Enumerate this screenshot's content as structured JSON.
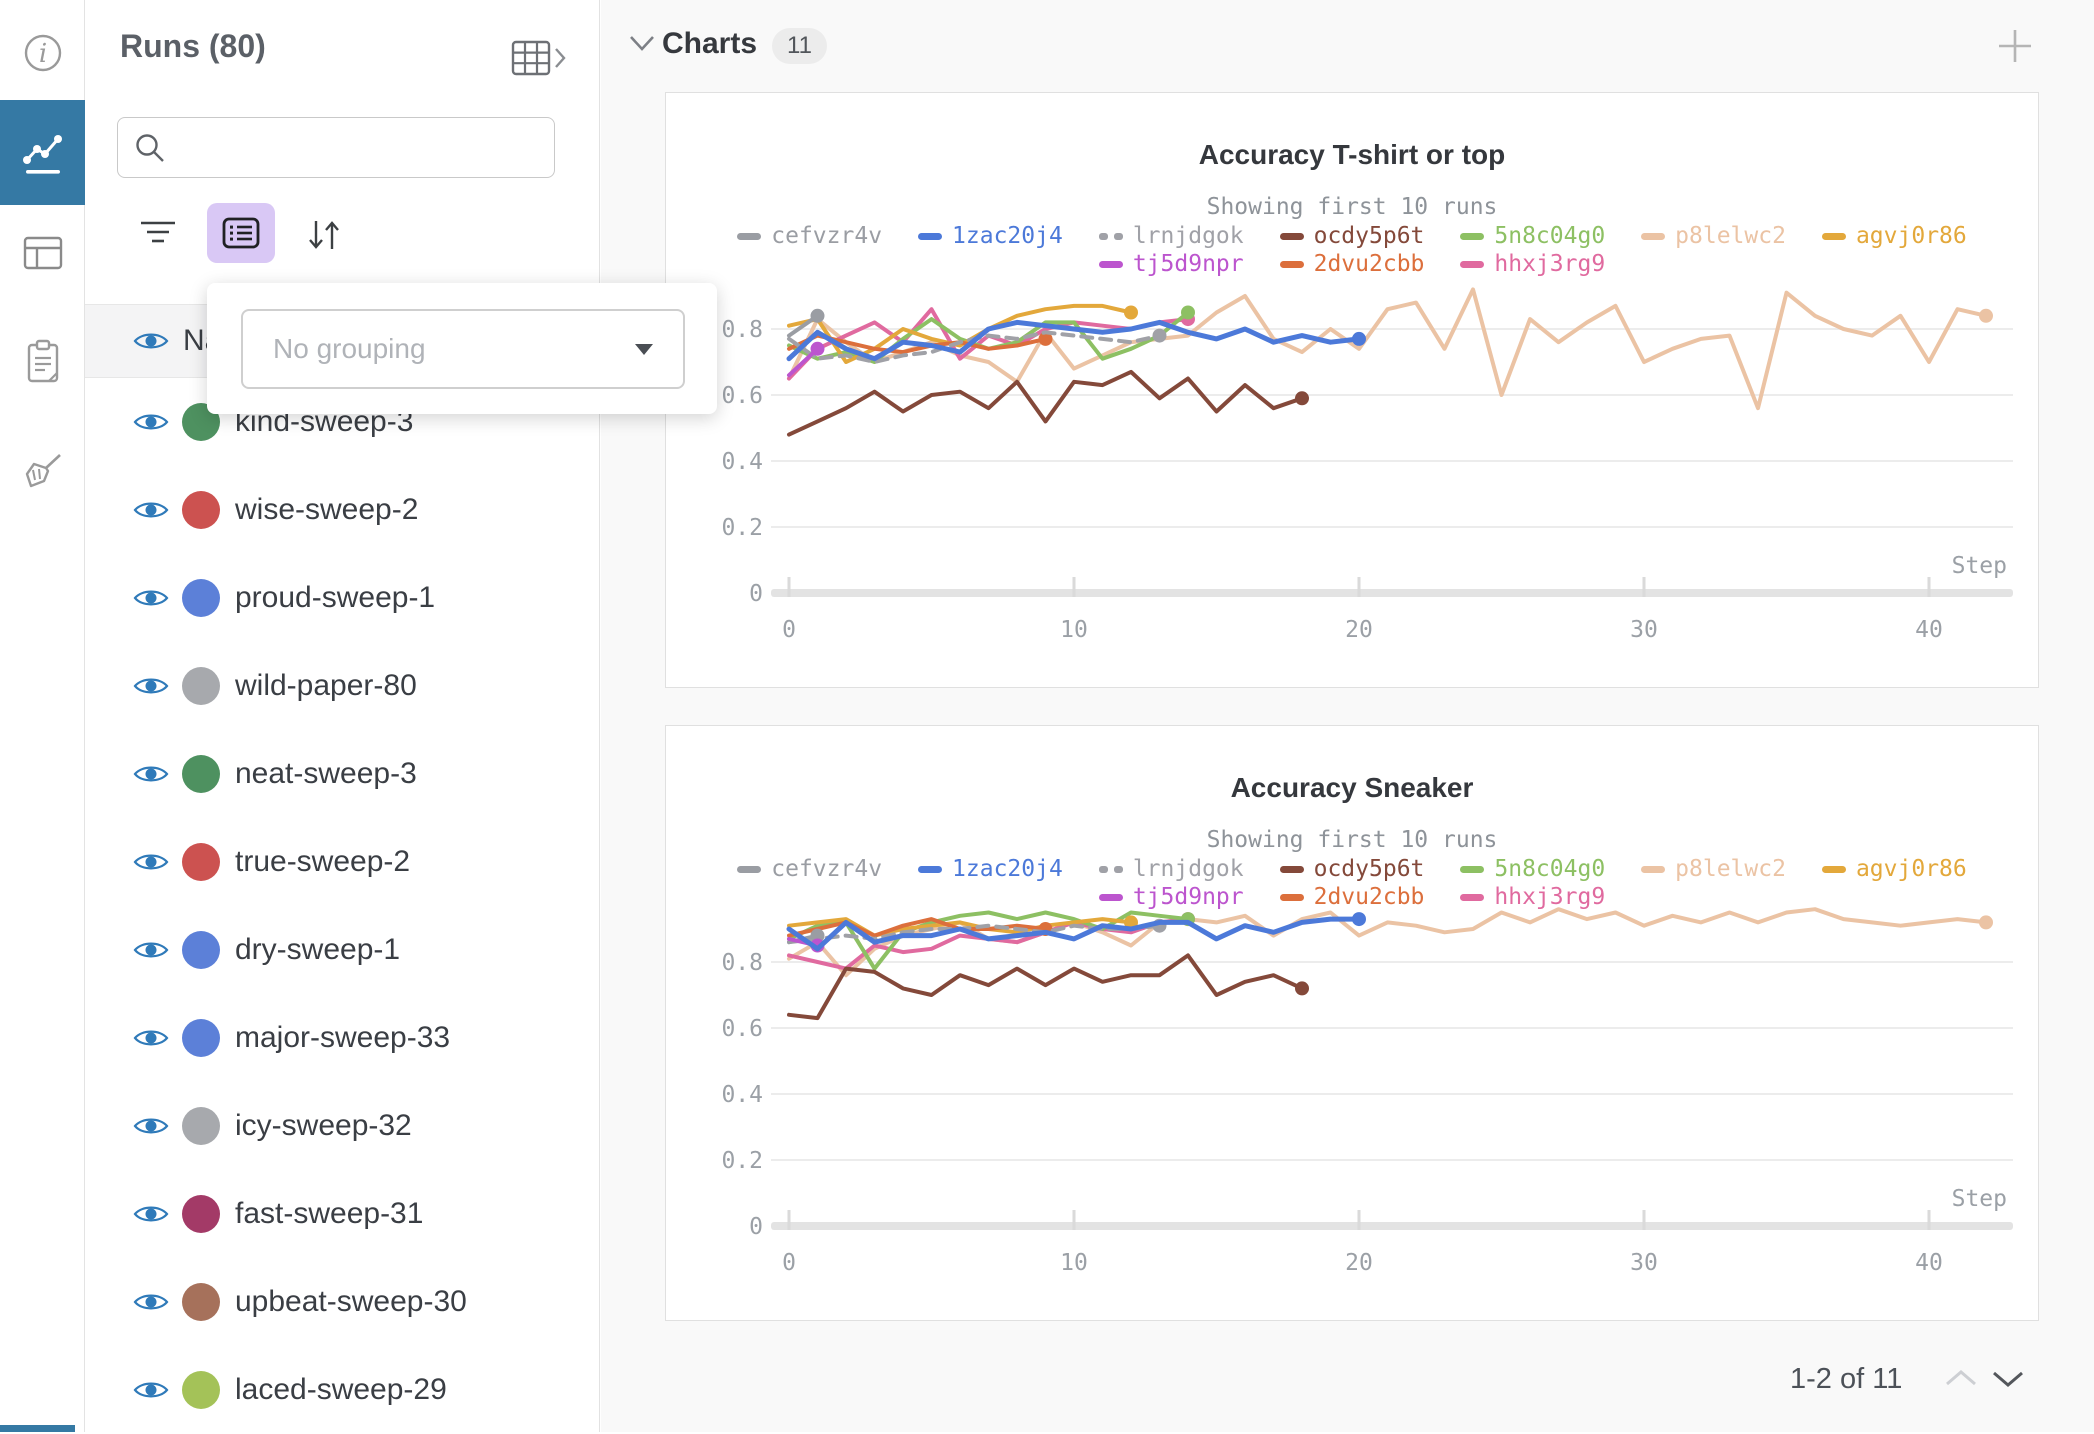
{
  "ui": {
    "rail": {
      "icons": [
        "info-icon",
        "line-chart-icon",
        "table-icon",
        "clipboard-icon",
        "broom-icon"
      ],
      "active_icon": "line-chart-icon",
      "active_color": "#3579A4"
    },
    "sidebar": {
      "title": "Runs (80)",
      "search_placeholder": "",
      "header_row": "Name",
      "grouping_placeholder": "No grouping"
    },
    "charts_header": {
      "label": "Charts",
      "badge": "11"
    },
    "pagination": {
      "label": "1-2 of 11"
    }
  },
  "runs": [
    {
      "name": "kind-sweep-3",
      "color": "#4E9160"
    },
    {
      "name": "wise-sweep-2",
      "color": "#CC5250"
    },
    {
      "name": "proud-sweep-1",
      "color": "#5C80D8"
    },
    {
      "name": "wild-paper-80",
      "color": "#A7A9AD"
    },
    {
      "name": "neat-sweep-3",
      "color": "#4E9160"
    },
    {
      "name": "true-sweep-2",
      "color": "#CC5250"
    },
    {
      "name": "dry-sweep-1",
      "color": "#5C80D8"
    },
    {
      "name": "major-sweep-33",
      "color": "#5C80D8"
    },
    {
      "name": "icy-sweep-32",
      "color": "#A7A9AD"
    },
    {
      "name": "fast-sweep-31",
      "color": "#A33A67"
    },
    {
      "name": "upbeat-sweep-30",
      "color": "#A6715B"
    },
    {
      "name": "laced-sweep-29",
      "color": "#A4C258"
    }
  ],
  "chart_data": [
    {
      "type": "line",
      "title": "Accuracy T-shirt or top",
      "subtitle": "Showing first 10 runs",
      "xlabel": "Step",
      "x_ticks": [
        0,
        10,
        20,
        30,
        40
      ],
      "y_ticks": [
        0,
        0.2,
        0.4,
        0.6,
        0.8
      ],
      "xlim": [
        0,
        42
      ],
      "ylim": [
        0,
        1
      ],
      "grid": true,
      "legend_position": "top",
      "legend_rows": [
        [
          "cefvzr4v",
          "1zac20j4",
          "lrnjdgok",
          "ocdy5p6t",
          "5n8c04g0",
          "p8lelwc2",
          "agvj0r86"
        ],
        [
          "tj5d9npr",
          "2dvu2cbb",
          "hhxj3rg9"
        ]
      ],
      "series": [
        {
          "name": "p8lelwc2",
          "color": "#EBC3A4",
          "values": [
            0.65,
            0.83,
            0.76,
            0.7,
            0.73,
            0.76,
            0.72,
            0.7,
            0.64,
            0.79,
            0.68,
            0.72,
            0.76,
            0.77,
            0.78,
            0.85,
            0.9,
            0.77,
            0.73,
            0.8,
            0.74,
            0.86,
            0.88,
            0.74,
            0.92,
            0.6,
            0.83,
            0.76,
            0.82,
            0.87,
            0.7,
            0.74,
            0.77,
            0.78,
            0.56,
            0.91,
            0.84,
            0.8,
            0.78,
            0.84,
            0.7,
            0.86,
            0.84
          ]
        },
        {
          "name": "hhxj3rg9",
          "color": "#E06A9F",
          "values": [
            0.65,
            0.74,
            0.78,
            0.82,
            0.76,
            0.86,
            0.71,
            0.78,
            0.75,
            0.8,
            0.82,
            0.81,
            0.8,
            0.82,
            0.83
          ]
        },
        {
          "name": "5n8c04g0",
          "color": "#8DC063",
          "values": [
            0.75,
            0.71,
            0.73,
            0.7,
            0.77,
            0.83,
            0.77,
            0.74,
            0.76,
            0.82,
            0.82,
            0.71,
            0.74,
            0.78,
            0.85
          ]
        },
        {
          "name": "agvj0r86",
          "color": "#E3A83B",
          "values": [
            0.81,
            0.83,
            0.7,
            0.74,
            0.8,
            0.77,
            0.75,
            0.8,
            0.84,
            0.86,
            0.87,
            0.87,
            0.85
          ]
        },
        {
          "name": "2dvu2cbb",
          "color": "#DC6F3C",
          "values": [
            0.74,
            0.78,
            0.76,
            0.74,
            0.73,
            0.75,
            0.76,
            0.74,
            0.75,
            0.77
          ]
        },
        {
          "name": "lrnjdgok",
          "color": "#A0A1A7",
          "dashed": true,
          "values": [
            0.77,
            0.71,
            0.72,
            0.7,
            0.72,
            0.73,
            0.76,
            0.78,
            0.77,
            0.79,
            0.78,
            0.77,
            0.76,
            0.78
          ]
        },
        {
          "name": "ocdy5p6t",
          "color": "#84493A",
          "values": [
            0.48,
            0.52,
            0.56,
            0.61,
            0.55,
            0.6,
            0.61,
            0.56,
            0.64,
            0.52,
            0.64,
            0.63,
            0.67,
            0.59,
            0.65,
            0.55,
            0.63,
            0.56,
            0.59
          ]
        },
        {
          "name": "cefvzr4v",
          "color": "#9A9DA3",
          "values": [
            0.78,
            0.84
          ]
        },
        {
          "name": "tj5d9npr",
          "color": "#BC55CE",
          "values": [
            0.66,
            0.74
          ]
        },
        {
          "name": "1zac20j4",
          "color": "#4C79D9",
          "line_width": 5,
          "values": [
            0.71,
            0.79,
            0.74,
            0.71,
            0.76,
            0.75,
            0.73,
            0.8,
            0.82,
            0.81,
            0.8,
            0.79,
            0.8,
            0.82,
            0.79,
            0.77,
            0.8,
            0.76,
            0.78,
            0.76,
            0.77
          ]
        }
      ]
    },
    {
      "type": "line",
      "title": "Accuracy Sneaker",
      "subtitle": "Showing first 10 runs",
      "xlabel": "Step",
      "x_ticks": [
        0,
        10,
        20,
        30,
        40
      ],
      "y_ticks": [
        0,
        0.2,
        0.4,
        0.6,
        0.8
      ],
      "xlim": [
        0,
        42
      ],
      "ylim": [
        0,
        1
      ],
      "grid": true,
      "legend_position": "top",
      "legend_rows": [
        [
          "cefvzr4v",
          "1zac20j4",
          "lrnjdgok",
          "ocdy5p6t",
          "5n8c04g0",
          "p8lelwc2",
          "agvj0r86"
        ],
        [
          "tj5d9npr",
          "2dvu2cbb",
          "hhxj3rg9"
        ]
      ],
      "series": [
        {
          "name": "p8lelwc2",
          "color": "#EBC3A4",
          "values": [
            0.81,
            0.86,
            0.76,
            0.84,
            0.88,
            0.9,
            0.92,
            0.87,
            0.86,
            0.89,
            0.92,
            0.89,
            0.85,
            0.92,
            0.93,
            0.92,
            0.94,
            0.88,
            0.93,
            0.95,
            0.88,
            0.92,
            0.91,
            0.89,
            0.9,
            0.95,
            0.92,
            0.96,
            0.93,
            0.95,
            0.91,
            0.94,
            0.92,
            0.95,
            0.92,
            0.95,
            0.96,
            0.93,
            0.92,
            0.91,
            0.92,
            0.93,
            0.92
          ]
        },
        {
          "name": "hhxj3rg9",
          "color": "#E06A9F",
          "values": [
            0.82,
            0.8,
            0.78,
            0.85,
            0.83,
            0.84,
            0.88,
            0.87,
            0.86,
            0.89,
            0.92,
            0.9,
            0.89,
            0.92,
            0.93
          ]
        },
        {
          "name": "5n8c04g0",
          "color": "#8DC063",
          "values": [
            0.87,
            0.91,
            0.92,
            0.78,
            0.89,
            0.92,
            0.94,
            0.95,
            0.93,
            0.95,
            0.93,
            0.9,
            0.95,
            0.94,
            0.93
          ]
        },
        {
          "name": "agvj0r86",
          "color": "#E3A83B",
          "values": [
            0.91,
            0.92,
            0.93,
            0.88,
            0.9,
            0.91,
            0.92,
            0.9,
            0.89,
            0.91,
            0.92,
            0.93,
            0.92
          ]
        },
        {
          "name": "2dvu2cbb",
          "color": "#DC6F3C",
          "values": [
            0.88,
            0.9,
            0.92,
            0.88,
            0.91,
            0.93,
            0.9,
            0.9,
            0.91,
            0.9
          ]
        },
        {
          "name": "lrnjdgok",
          "color": "#A0A1A7",
          "dashed": true,
          "values": [
            0.86,
            0.87,
            0.88,
            0.87,
            0.89,
            0.9,
            0.9,
            0.91,
            0.9,
            0.89,
            0.91,
            0.9,
            0.9,
            0.91
          ]
        },
        {
          "name": "ocdy5p6t",
          "color": "#84493A",
          "values": [
            0.64,
            0.63,
            0.78,
            0.77,
            0.72,
            0.7,
            0.76,
            0.73,
            0.78,
            0.73,
            0.78,
            0.74,
            0.76,
            0.76,
            0.82,
            0.7,
            0.74,
            0.76,
            0.72
          ]
        },
        {
          "name": "cefvzr4v",
          "color": "#9A9DA3",
          "values": [
            0.86,
            0.88
          ]
        },
        {
          "name": "tj5d9npr",
          "color": "#BC55CE",
          "values": [
            0.87,
            0.85
          ]
        },
        {
          "name": "1zac20j4",
          "color": "#4C79D9",
          "line_width": 5,
          "values": [
            0.9,
            0.84,
            0.92,
            0.86,
            0.88,
            0.88,
            0.9,
            0.87,
            0.88,
            0.89,
            0.87,
            0.91,
            0.9,
            0.92,
            0.92,
            0.87,
            0.91,
            0.89,
            0.92,
            0.93,
            0.93
          ]
        }
      ]
    }
  ]
}
